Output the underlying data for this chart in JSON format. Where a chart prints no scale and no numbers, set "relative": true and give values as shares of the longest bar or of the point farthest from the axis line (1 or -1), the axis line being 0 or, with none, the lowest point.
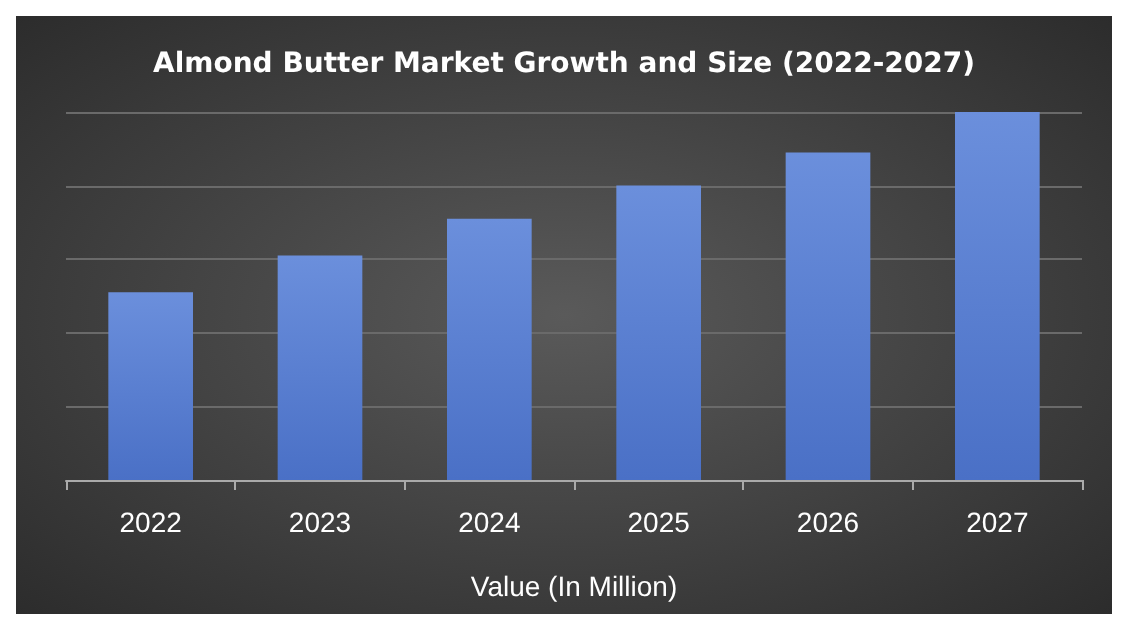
{
  "chart_data": {
    "type": "bar",
    "title": "Almond Butter Market Growth and Size (2022-2027)",
    "xlabel": "Value (In Million)",
    "categories": [
      "2022",
      "2023",
      "2024",
      "2025",
      "2026",
      "2027"
    ],
    "values": [
      0.51,
      0.61,
      0.71,
      0.8,
      0.89,
      1
    ],
    "color": "#4a70c6",
    "relative": true,
    "grid": "y"
  }
}
